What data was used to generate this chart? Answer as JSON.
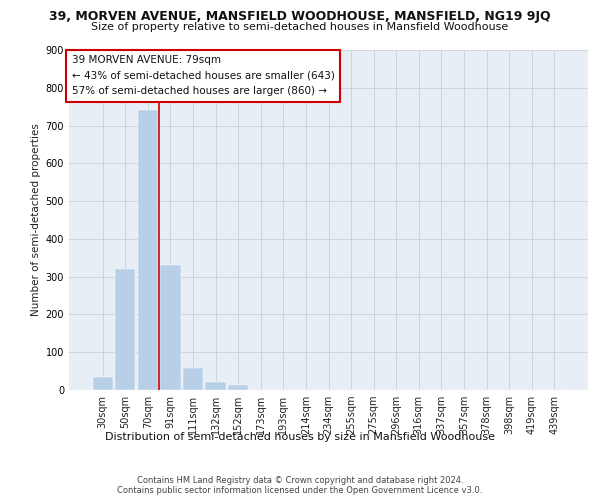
{
  "title_line1": "39, MORVEN AVENUE, MANSFIELD WOODHOUSE, MANSFIELD, NG19 9JQ",
  "title_line2": "Size of property relative to semi-detached houses in Mansfield Woodhouse",
  "xlabel": "Distribution of semi-detached houses by size in Mansfield Woodhouse",
  "ylabel": "Number of semi-detached properties",
  "categories": [
    "30sqm",
    "50sqm",
    "70sqm",
    "91sqm",
    "111sqm",
    "132sqm",
    "152sqm",
    "173sqm",
    "193sqm",
    "214sqm",
    "234sqm",
    "255sqm",
    "275sqm",
    "296sqm",
    "316sqm",
    "337sqm",
    "357sqm",
    "378sqm",
    "398sqm",
    "419sqm",
    "439sqm"
  ],
  "values": [
    35,
    320,
    740,
    330,
    57,
    22,
    13,
    0,
    0,
    0,
    0,
    0,
    0,
    0,
    0,
    0,
    0,
    0,
    0,
    0,
    0
  ],
  "bar_color": "#b8cfe8",
  "vline_color": "#cc0000",
  "annotation_title": "39 MORVEN AVENUE: 79sqm",
  "annotation_line1": "← 43% of semi-detached houses are smaller (643)",
  "annotation_line2": "57% of semi-detached houses are larger (860) →",
  "ylim": [
    0,
    900
  ],
  "yticks": [
    0,
    100,
    200,
    300,
    400,
    500,
    600,
    700,
    800,
    900
  ],
  "background_color": "#e8eef6",
  "footer_line1": "Contains HM Land Registry data © Crown copyright and database right 2024.",
  "footer_line2": "Contains public sector information licensed under the Open Government Licence v3.0.",
  "title1_fontsize": 9,
  "title2_fontsize": 8,
  "xlabel_fontsize": 8,
  "ylabel_fontsize": 7.5,
  "tick_fontsize": 7,
  "footer_fontsize": 6,
  "annot_fontsize": 7.5
}
